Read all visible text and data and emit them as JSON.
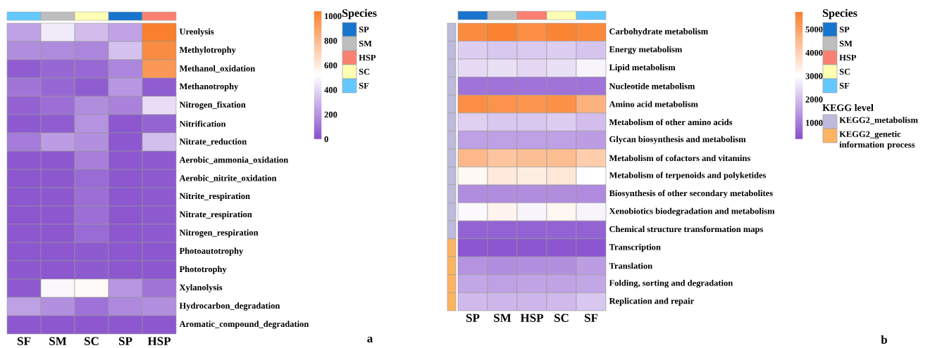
{
  "chart_data": [
    {
      "type": "heatmap",
      "categories": [
        "SF",
        "SM",
        "SC",
        "SP",
        "HSP"
      ],
      "y_categories": [
        "Ureolysis",
        "Methylotrophy",
        "Methanol_oxidation",
        "Methanotrophy",
        "Nitrogen_fixation",
        "Nitrification",
        "Nitrate_reduction",
        "Aerobic_ammonia_oxidation",
        "Aerobic_nitrite_oxidation",
        "Nitrite_respiration",
        "Nitrate_respiration",
        "Nitrogen_respiration",
        "Photoautotrophy",
        "Phototrophy",
        "Xylanolysis",
        "Hydrocarbon_degradation",
        "Aromatic_compound_degradation"
      ],
      "cells": [
        [
          240,
          460,
          320,
          245,
          1040
        ],
        [
          180,
          175,
          160,
          335,
          990
        ],
        [
          40,
          70,
          75,
          160,
          940
        ],
        [
          110,
          70,
          40,
          210,
          40
        ],
        [
          50,
          90,
          180,
          150,
          420
        ],
        [
          30,
          40,
          200,
          20,
          60
        ],
        [
          130,
          230,
          190,
          20,
          330
        ],
        [
          20,
          25,
          140,
          20,
          30
        ],
        [
          20,
          25,
          80,
          20,
          30
        ],
        [
          20,
          25,
          90,
          20,
          30
        ],
        [
          20,
          25,
          90,
          20,
          30
        ],
        [
          20,
          25,
          80,
          20,
          30
        ],
        [
          20,
          20,
          30,
          20,
          20
        ],
        [
          20,
          20,
          30,
          20,
          20
        ],
        [
          30,
          500,
          540,
          210,
          110
        ],
        [
          240,
          190,
          100,
          170,
          190
        ],
        [
          25,
          25,
          25,
          25,
          25
        ]
      ],
      "clim": [
        0,
        1040
      ],
      "cticks": [
        0,
        200,
        400,
        600,
        800,
        1000
      ],
      "annotations": [
        "Species",
        "SP",
        "SM",
        "HSP",
        "SC",
        "SF",
        "a"
      ]
    },
    {
      "type": "heatmap",
      "categories": [
        "SP",
        "SM",
        "HSP",
        "SC",
        "SF"
      ],
      "y_categories": [
        "Carbohydrate metabolism",
        "Energy metabolism",
        "Lipid metabolism",
        "Nucleotide metabolism",
        "Amino acid metabolism",
        "Metabolism of other amino acids",
        "Glycan biosynthesis and metabolism",
        "Metabolism of cofactors and vitamins",
        "Metabolism of terpenoids and polyketides",
        "Biosynthesis of other secondary metabolites",
        "Xenobiotics biodegradation and metabolism",
        "Chemical structure transformation maps",
        "Transcription",
        "Translation",
        "Folding, sorting and degradation",
        "Replication and repair"
      ],
      "cells": [
        [
          5500,
          5700,
          5450,
          5650,
          5550
        ],
        [
          2250,
          2150,
          2200,
          2250,
          2100
        ],
        [
          2450,
          2550,
          2400,
          2550,
          2850
        ],
        [
          850,
          850,
          850,
          850,
          850
        ],
        [
          5450,
          5350,
          5300,
          5400,
          4700
        ],
        [
          2300,
          2150,
          2150,
          2250,
          2000
        ],
        [
          1550,
          1550,
          1550,
          1550,
          1500
        ],
        [
          4550,
          4300,
          4400,
          4450,
          4100
        ],
        [
          3150,
          3500,
          3400,
          3550,
          3000
        ],
        [
          1250,
          1250,
          1250,
          1250,
          1200
        ],
        [
          2950,
          3250,
          2850,
          3200,
          2850
        ],
        [
          600,
          600,
          600,
          600,
          600
        ],
        [
          400,
          400,
          400,
          400,
          400
        ],
        [
          1350,
          1250,
          1300,
          1300,
          1500
        ],
        [
          1650,
          1550,
          1600,
          1600,
          1650
        ],
        [
          1950,
          1900,
          1900,
          1950,
          2150
        ]
      ],
      "clim": [
        300,
        5750
      ],
      "cticks": [
        1000,
        2000,
        3000,
        4000,
        5000
      ],
      "annotations": [
        "Species",
        "SP",
        "SM",
        "HSP",
        "SC",
        "SF",
        "KEGG level",
        "KEGG2_metabolism",
        "KEGG2_genetic information process",
        "b"
      ]
    }
  ]
}
